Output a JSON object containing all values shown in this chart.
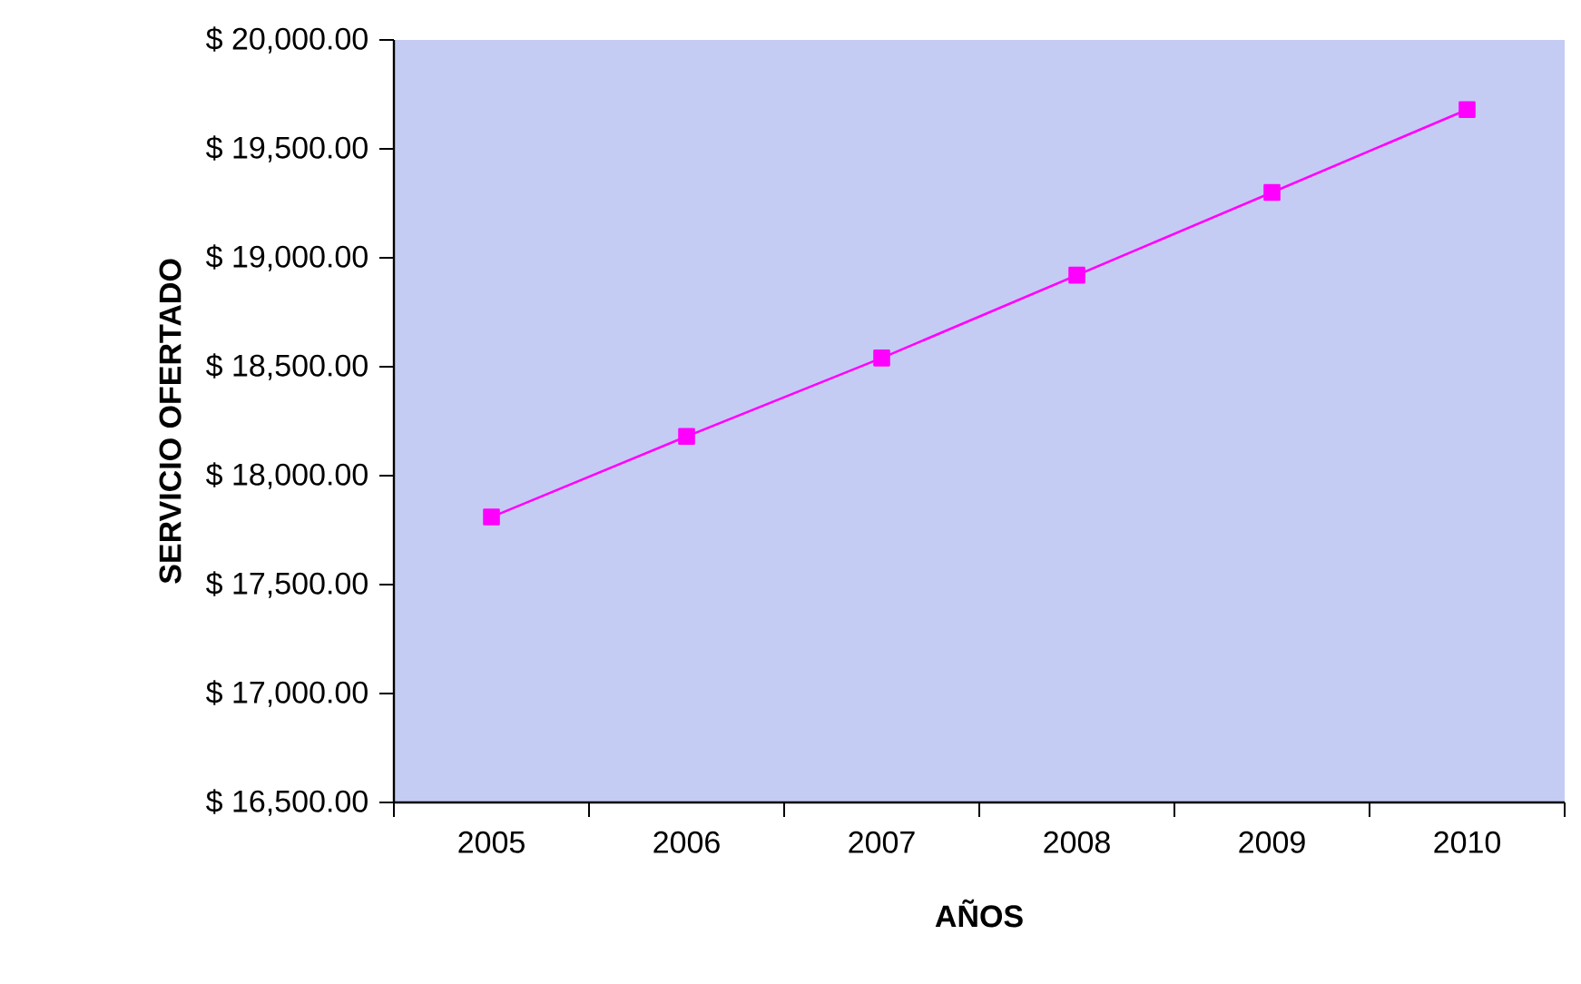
{
  "chart_data": {
    "type": "line",
    "xlabel": "AÑOS",
    "ylabel": "SERVICIO OFERTADO",
    "categories": [
      "2005",
      "2006",
      "2007",
      "2008",
      "2009",
      "2010"
    ],
    "series": [
      {
        "color": "#ff00ff",
        "values": [
          17810,
          18180,
          18540,
          18920,
          19300,
          19680
        ]
      }
    ],
    "ylim": [
      16500,
      20000
    ],
    "yticks": [
      {
        "value": 16500,
        "label": "$ 16,500.00"
      },
      {
        "value": 17000,
        "label": "$ 17,000.00"
      },
      {
        "value": 17500,
        "label": "$ 17,500.00"
      },
      {
        "value": 18000,
        "label": "$ 18,000.00"
      },
      {
        "value": 18500,
        "label": "$ 18,500.00"
      },
      {
        "value": 19000,
        "label": "$ 19,000.00"
      },
      {
        "value": 19500,
        "label": "$ 19,500.00"
      },
      {
        "value": 20000,
        "label": "$ 20,000.00"
      }
    ],
    "grid": false,
    "marker": "square",
    "line_style": "solid"
  }
}
